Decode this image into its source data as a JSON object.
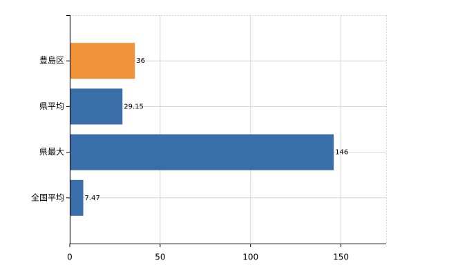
{
  "chart_data": {
    "type": "barh",
    "categories": [
      "豊島区",
      "県平均",
      "県最大",
      "全国平均"
    ],
    "values": [
      36,
      29.15,
      146,
      7.47
    ],
    "colors": [
      "#f0923a",
      "#3a6ea8",
      "#3a6ea8",
      "#3a6ea8"
    ],
    "xlim": [
      0,
      175
    ],
    "xticks": [
      0,
      50,
      100,
      150
    ],
    "grid": true
  }
}
